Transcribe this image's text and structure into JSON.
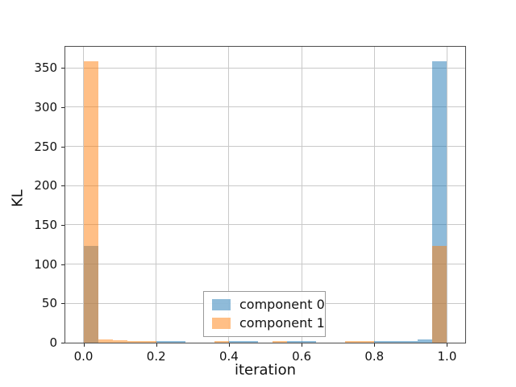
{
  "chart_data": {
    "type": "bar",
    "subtype": "overlapping-histogram",
    "title": "",
    "xlabel": "iteration",
    "ylabel": "KL",
    "xlim": [
      -0.05,
      1.05
    ],
    "ylim": [
      0,
      377
    ],
    "xticks": [
      0.0,
      0.2,
      0.4,
      0.6,
      0.8,
      1.0
    ],
    "xtick_labels": [
      "0.0",
      "0.2",
      "0.4",
      "0.6",
      "0.8",
      "1.0"
    ],
    "yticks": [
      0,
      50,
      100,
      150,
      200,
      250,
      300,
      350
    ],
    "ytick_labels": [
      "0",
      "50",
      "100",
      "150",
      "200",
      "250",
      "300",
      "350"
    ],
    "grid": true,
    "grid_color": "#c9c9c9",
    "axis_color": "#4d4d4d",
    "bins": {
      "start": 0.0,
      "width": 0.04,
      "count": 25
    },
    "series": [
      {
        "name": "component 0",
        "color": "#1f77b4",
        "alpha": 0.5,
        "values": [
          123,
          0,
          0,
          0,
          0,
          2,
          2,
          0,
          0,
          0,
          2,
          2,
          0,
          0,
          2,
          2,
          0,
          0,
          0,
          0,
          2,
          2,
          2,
          4,
          359
        ]
      },
      {
        "name": "component 1",
        "color": "#ff7f0e",
        "alpha": 0.5,
        "values": [
          359,
          4,
          3,
          2,
          2,
          0,
          0,
          0,
          0,
          2,
          0,
          0,
          0,
          2,
          0,
          0,
          0,
          0,
          2,
          2,
          0,
          0,
          0,
          0,
          123
        ]
      }
    ],
    "legend": {
      "position": "lower center",
      "entries": [
        "component 0",
        "component 1"
      ]
    }
  }
}
